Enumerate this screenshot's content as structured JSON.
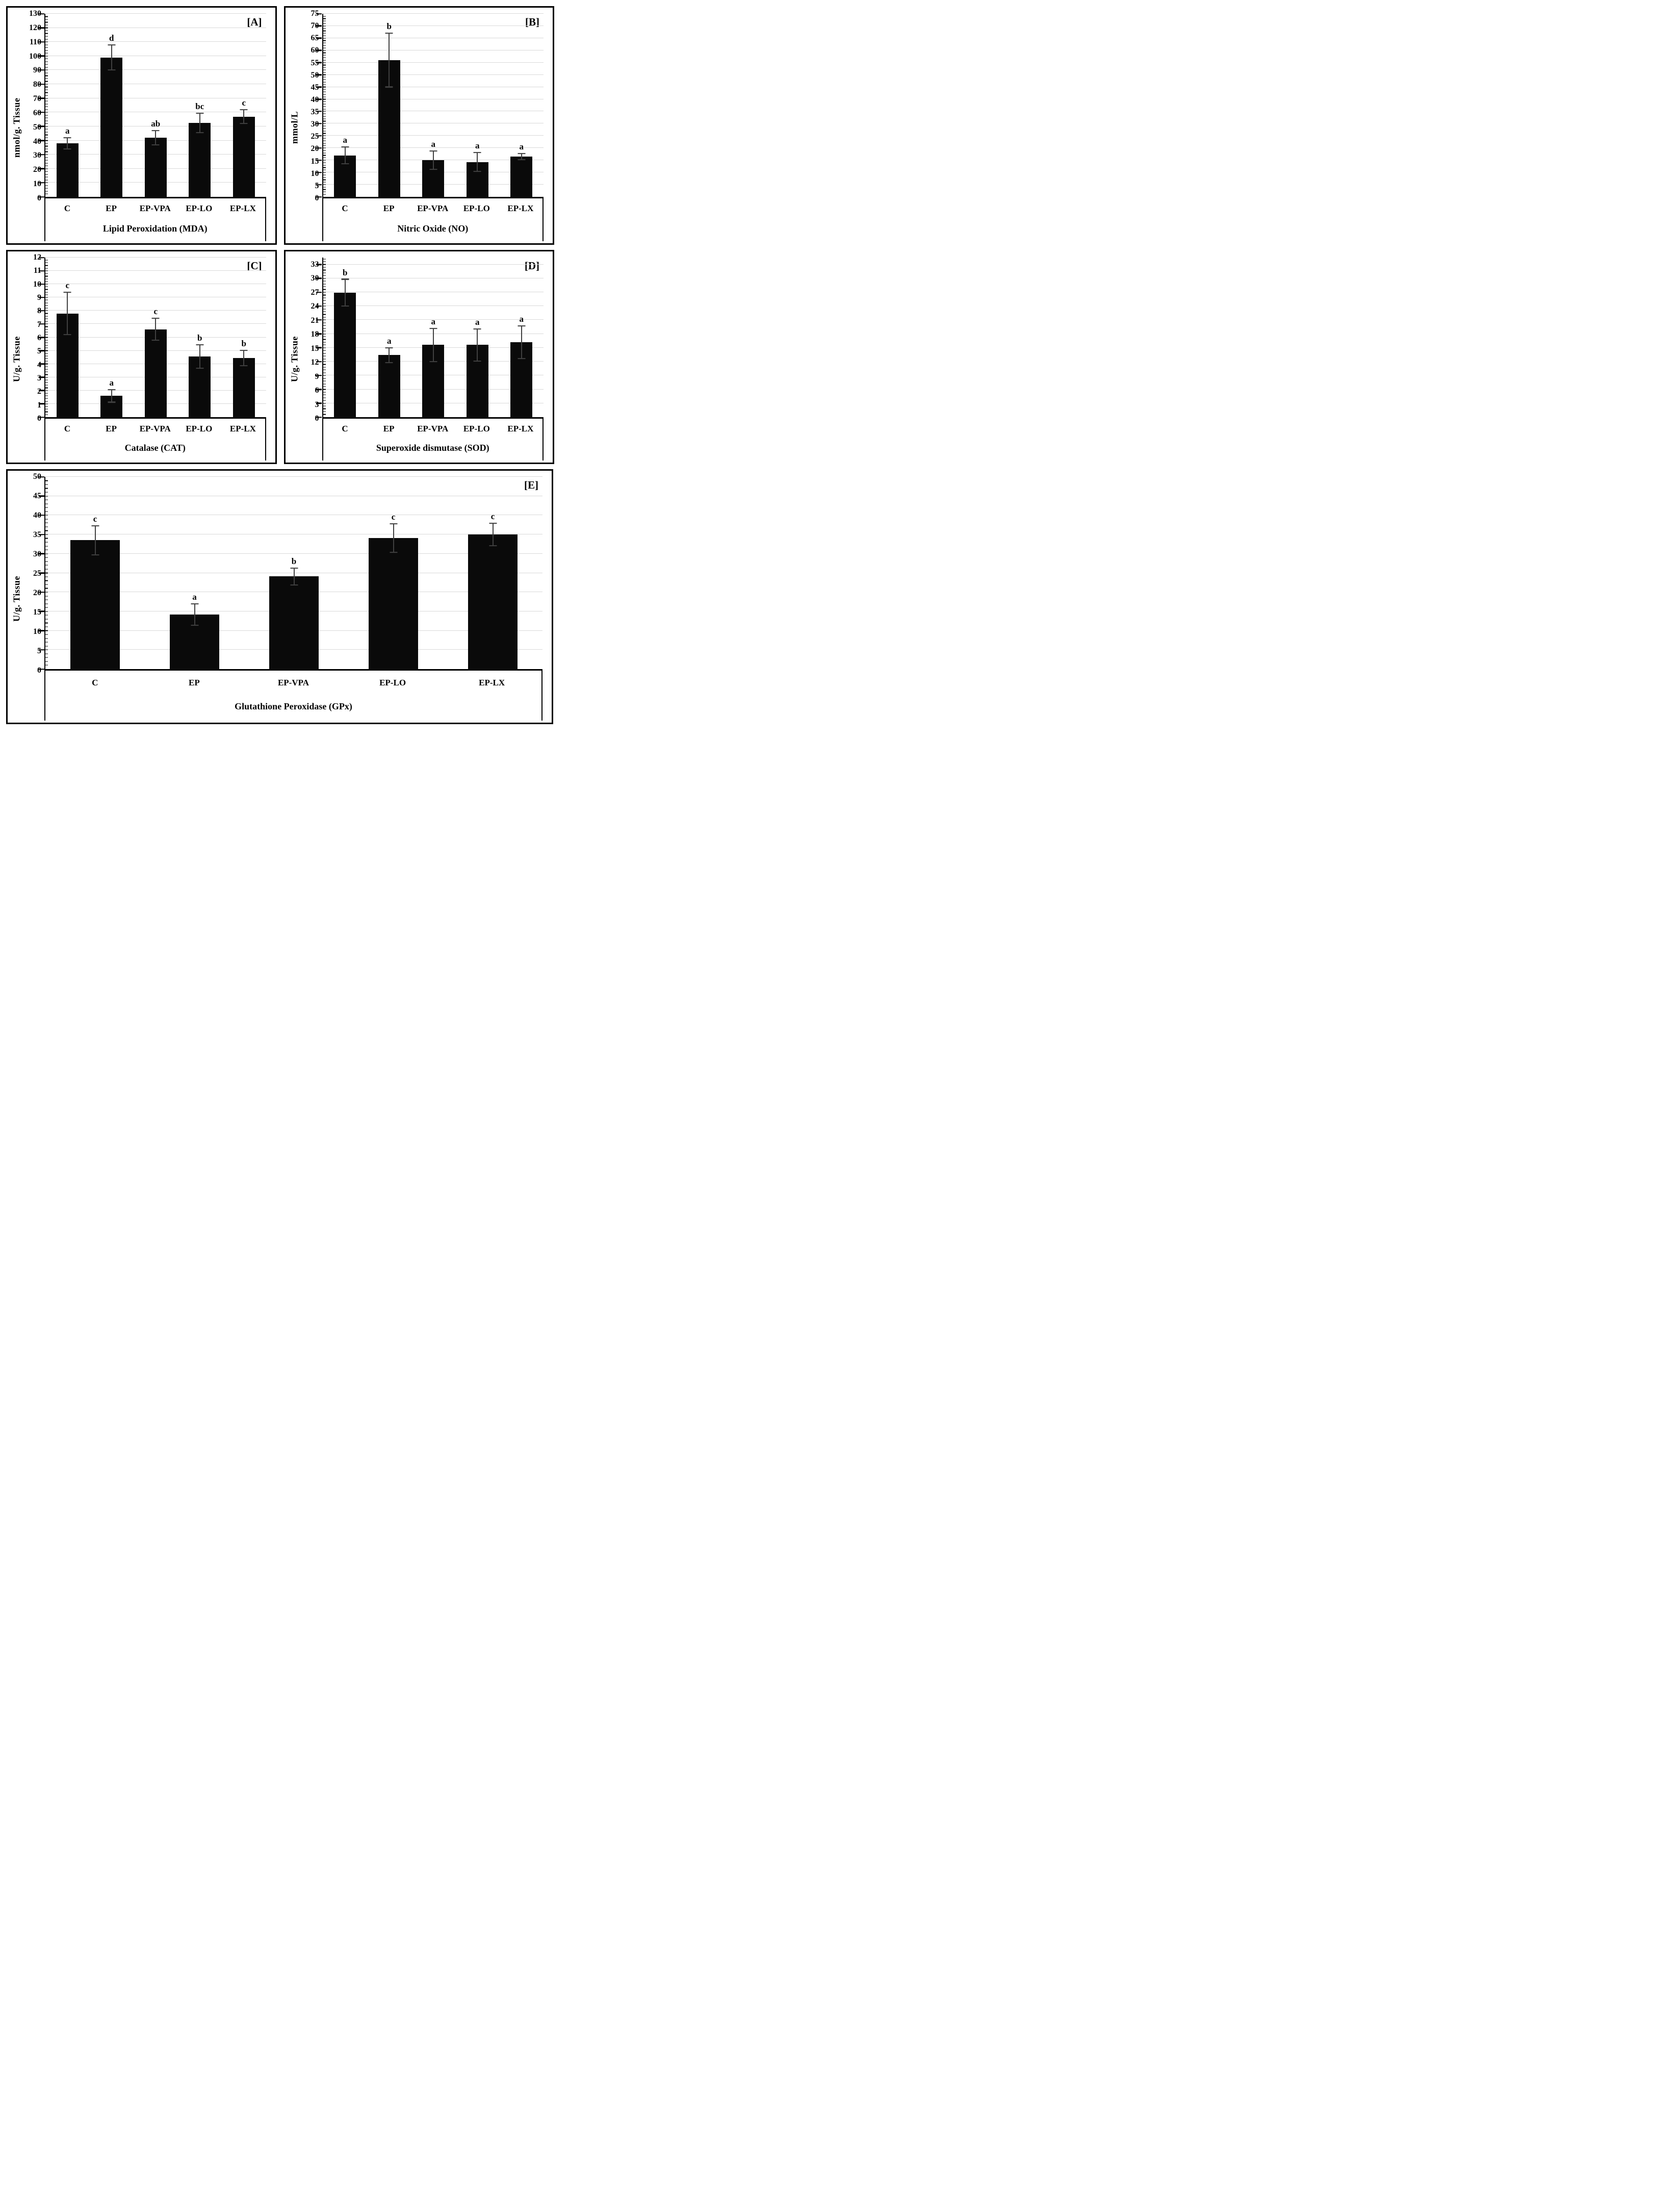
{
  "chart_data": [
    {
      "type": "bar",
      "panel_label": "[A]",
      "title": "Lipid Peroxidation (MDA)",
      "ylabel": "nmol/g. Tissue",
      "xlabel": "",
      "categories": [
        "C",
        "EP",
        "EP-VPA",
        "EP-LO",
        "EP-LX"
      ],
      "values": [
        38,
        99,
        42,
        52.5,
        57
      ],
      "errors": [
        4,
        9,
        5,
        7,
        5
      ],
      "sig_letters": [
        "a",
        "d",
        "ab",
        "bc",
        "c"
      ],
      "ylim": [
        0,
        130
      ],
      "y_tick_step": 10,
      "y_tick_max": 130,
      "y_minor_step": 2,
      "grid": true,
      "legend": "none",
      "bar_color": "#0a0a0a",
      "error_color": "#404040"
    },
    {
      "type": "bar",
      "panel_label": "[B]",
      "title": "Nitric Oxide (NO)",
      "ylabel": "mmol/L",
      "xlabel": "",
      "categories": [
        "C",
        "EP",
        "EP-VPA",
        "EP-LO",
        "EP-LX"
      ],
      "values": [
        17,
        56,
        15,
        14.3,
        16.5
      ],
      "errors": [
        3.5,
        11,
        3.8,
        3.8,
        1.2
      ],
      "sig_letters": [
        "a",
        "b",
        "a",
        "a",
        "a"
      ],
      "ylim": [
        0,
        75
      ],
      "y_tick_step": 5,
      "y_tick_max": 75,
      "y_minor_step": 1,
      "grid": true,
      "legend": "none",
      "bar_color": "#0a0a0a",
      "error_color": "#404040"
    },
    {
      "type": "bar",
      "panel_label": "[C]",
      "title": "Catalase (CAT)",
      "ylabel": "U/g. Tissue",
      "xlabel": "",
      "categories": [
        "C",
        "EP",
        "EP-VPA",
        "EP-LO",
        "EP-LX"
      ],
      "values": [
        7.8,
        1.6,
        6.6,
        4.55,
        4.45
      ],
      "errors": [
        1.6,
        0.47,
        0.82,
        0.88,
        0.57
      ],
      "sig_letters": [
        "c",
        "a",
        "c",
        "b",
        "b"
      ],
      "ylim": [
        0,
        12
      ],
      "y_tick_step": 1,
      "y_tick_max": 12,
      "y_minor_step": 0.2,
      "grid": true,
      "legend": "none",
      "bar_color": "#0a0a0a",
      "error_color": "#404040"
    },
    {
      "type": "bar",
      "panel_label": "[D]",
      "title": "Superoxide dismutase (SOD)",
      "ylabel": "U/g. Tissue",
      "xlabel": "",
      "categories": [
        "C",
        "EP",
        "EP-VPA",
        "EP-LO",
        "EP-LX"
      ],
      "values": [
        26.9,
        13.4,
        15.6,
        15.6,
        16.2
      ],
      "errors": [
        2.9,
        1.6,
        3.6,
        3.5,
        3.5
      ],
      "sig_letters": [
        "b",
        "a",
        "a",
        "a",
        "a"
      ],
      "ylim": [
        0,
        34.5
      ],
      "y_tick_step": 3,
      "y_tick_max": 33,
      "y_minor_step": 0.6,
      "grid": true,
      "legend": "none",
      "bar_color": "#0a0a0a",
      "error_color": "#404040"
    },
    {
      "type": "bar",
      "panel_label": "[E]",
      "title": "Glutathione Peroxidase (GPx)",
      "ylabel": "U/g. Tissue",
      "xlabel": "",
      "categories": [
        "C",
        "EP",
        "EP-VPA",
        "EP-LO",
        "EP-LX"
      ],
      "values": [
        33.5,
        14.2,
        24.1,
        34.1,
        35
      ],
      "errors": [
        3.8,
        2.8,
        2.2,
        3.7,
        2.9
      ],
      "sig_letters": [
        "c",
        "a",
        "b",
        "c",
        "c"
      ],
      "ylim": [
        0,
        50
      ],
      "y_tick_step": 5,
      "y_tick_max": 50,
      "y_minor_step": 1,
      "grid": true,
      "legend": "none",
      "bar_color": "#0a0a0a",
      "error_color": "#404040"
    }
  ]
}
